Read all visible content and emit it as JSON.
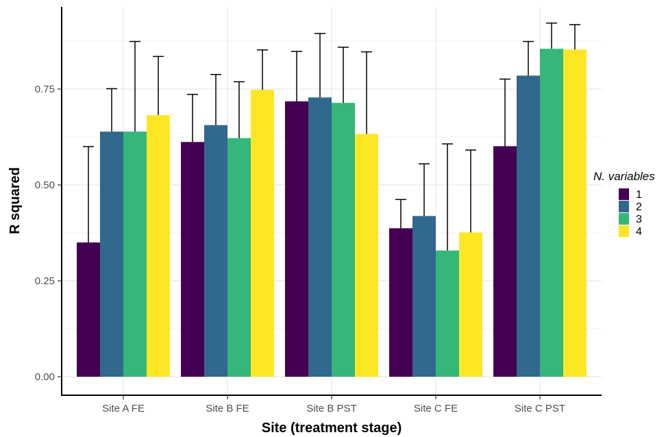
{
  "chart_data": {
    "type": "bar",
    "xlabel": "Site (treatment stage)",
    "ylabel": "R squared",
    "categories": [
      "Site A FE",
      "Site B FE",
      "Site B PST",
      "Site C FE",
      "Site C PST"
    ],
    "ylim": [
      0,
      0.9
    ],
    "yticks": [
      0.0,
      0.25,
      0.5,
      0.75
    ],
    "ytick_labels": [
      "0.00",
      "0.25",
      "0.50",
      "0.75"
    ],
    "grid": true,
    "legend": {
      "title": "N. variables",
      "placement": "right"
    },
    "error_bars": "upper",
    "series": [
      {
        "name": "1",
        "color": "#440154",
        "values": [
          0.35,
          0.612,
          0.718,
          0.387,
          0.601
        ],
        "upper": [
          0.6,
          0.736,
          0.848,
          0.462,
          0.776
        ]
      },
      {
        "name": "2",
        "color": "#31688E",
        "values": [
          0.639,
          0.656,
          0.728,
          0.419,
          0.785
        ],
        "upper": [
          0.751,
          0.788,
          0.895,
          0.555,
          0.874
        ]
      },
      {
        "name": "3",
        "color": "#35B779",
        "values": [
          0.639,
          0.622,
          0.714,
          0.329,
          0.855
        ],
        "upper": [
          0.874,
          0.769,
          0.859,
          0.607,
          0.922
        ]
      },
      {
        "name": "4",
        "color": "#FDE725",
        "values": [
          0.682,
          0.748,
          0.633,
          0.376,
          0.853
        ],
        "upper": [
          0.835,
          0.852,
          0.847,
          0.591,
          0.918
        ]
      }
    ]
  }
}
